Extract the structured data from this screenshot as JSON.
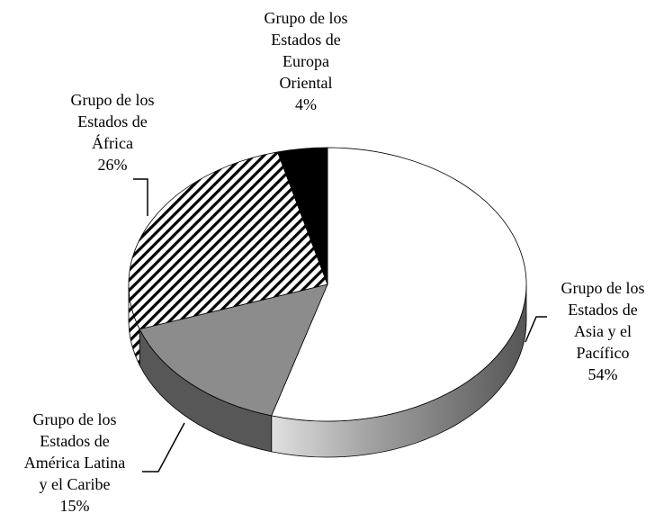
{
  "chart_data": {
    "type": "pie3d",
    "categories": [
      "Grupo de los Estados de Asia y el Pacífico",
      "Grupo de los Estados de América Latina y el Caribe",
      "Grupo de los Estados de África",
      "Grupo de los Estados de Europa Oriental"
    ],
    "values": [
      54,
      15,
      26,
      4
    ],
    "value_labels": [
      "54%",
      "15%",
      "26%",
      "4%"
    ],
    "colors": [
      "#ffffff",
      "#8c8c8c",
      "#ffffff",
      "#000000"
    ],
    "hatch": [
      false,
      false,
      true,
      false
    ]
  }
}
